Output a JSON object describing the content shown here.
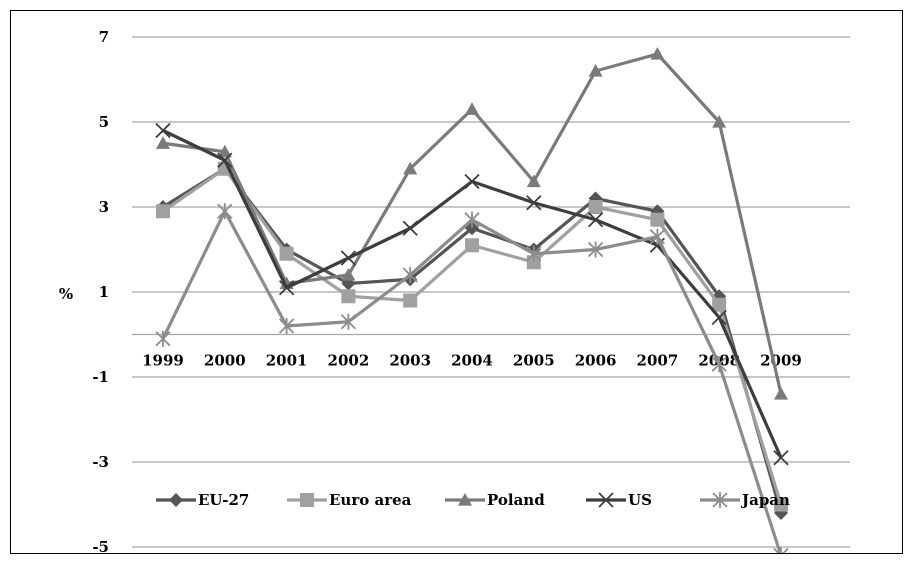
{
  "chart_data": {
    "type": "line",
    "title": "",
    "xlabel": "",
    "ylabel": "%",
    "categories": [
      "1999",
      "2000",
      "2001",
      "2002",
      "2003",
      "2004",
      "2005",
      "2006",
      "2007",
      "2008",
      "2009"
    ],
    "y_ticks": [
      "7",
      "5",
      "3",
      "1",
      "-1",
      "-3",
      "-5"
    ],
    "ylim": [
      -5,
      7
    ],
    "grid": "horizontal",
    "legend": "bottom",
    "series": [
      {
        "name": "EU-27",
        "color": "#555555",
        "marker": "diamond",
        "values": [
          3.0,
          3.9,
          2.0,
          1.2,
          1.3,
          2.5,
          2.0,
          3.2,
          2.9,
          0.9,
          -4.2
        ]
      },
      {
        "name": "Euro area",
        "color": "#a0a0a0",
        "marker": "square",
        "values": [
          2.9,
          3.9,
          1.9,
          0.9,
          0.8,
          2.1,
          1.7,
          3.0,
          2.7,
          0.7,
          -4.0
        ]
      },
      {
        "name": "Poland",
        "color": "#7a7a7a",
        "marker": "triangle",
        "values": [
          4.5,
          4.3,
          1.2,
          1.4,
          3.9,
          5.3,
          3.6,
          6.2,
          6.6,
          5.0,
          -1.4
        ]
      },
      {
        "name": "US",
        "color": "#3d3d3d",
        "marker": "x",
        "values": [
          4.8,
          4.1,
          1.1,
          1.8,
          2.5,
          3.6,
          3.1,
          2.7,
          2.1,
          0.4,
          -2.9
        ]
      },
      {
        "name": "Japan",
        "color": "#8c8c8c",
        "marker": "star",
        "values": [
          -0.1,
          2.9,
          0.2,
          0.3,
          1.4,
          2.7,
          1.9,
          2.0,
          2.3,
          -0.7,
          -5.2
        ]
      }
    ]
  }
}
